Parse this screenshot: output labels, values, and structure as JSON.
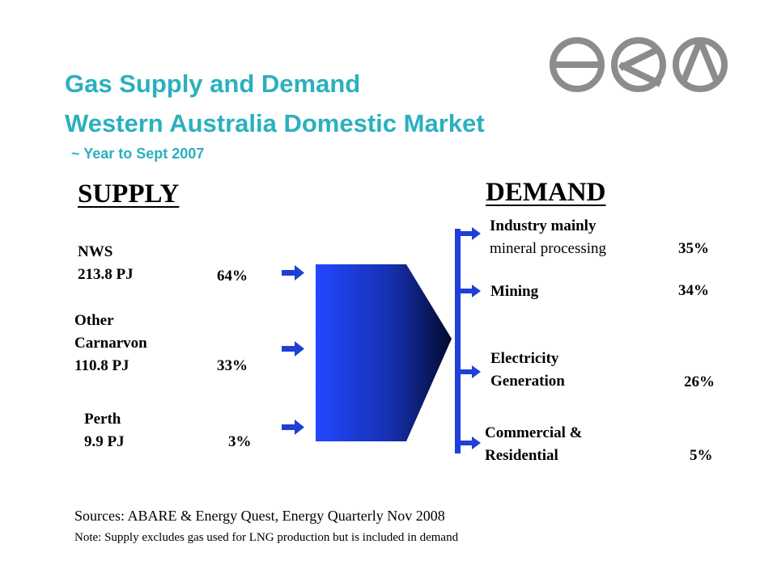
{
  "title": {
    "line1": "Gas Supply and Demand",
    "line2": "Western Australia Domestic Market",
    "line3": "~ Year to Sept 2007"
  },
  "logo": {
    "icon": "eqg-logo",
    "color": "#8c8c8c"
  },
  "supply": {
    "heading": "SUPPLY",
    "items": [
      {
        "name": "NWS",
        "amount": "213.8 PJ",
        "percent": "64%"
      },
      {
        "name1": "Other",
        "name2": "Carnarvon",
        "amount": "110.8 PJ",
        "percent": "33%"
      },
      {
        "name": "Perth",
        "amount": "9.9 PJ",
        "percent": "3%"
      }
    ]
  },
  "demand": {
    "heading": "DEMAND",
    "items": [
      {
        "line1": "Industry mainly",
        "line2": "mineral processing",
        "percent": "35%"
      },
      {
        "line1": "Mining",
        "percent": "34%"
      },
      {
        "line1": "Electricity",
        "line2": "Generation",
        "percent": "26%"
      },
      {
        "line1": "Commercial &",
        "line2": "Residential",
        "percent": "5%"
      }
    ]
  },
  "colors": {
    "title": "#2bb0bf",
    "arrow": "#1f3fd6",
    "funnel_light": "#2447ff",
    "funnel_dark": "#020a2e"
  },
  "footer": {
    "sources": "Sources: ABARE & Energy Quest, Energy Quarterly Nov 2008",
    "note": "Note: Supply excludes gas used for LNG production but is included in demand"
  }
}
